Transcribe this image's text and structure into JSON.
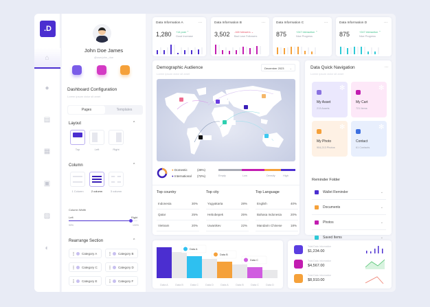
{
  "brand": {
    "logo": ".D"
  },
  "rail": {
    "items": [
      "home-icon",
      "add-circle-icon",
      "card-icon",
      "grid-icon",
      "inbox-icon",
      "contact-icon",
      "theme-icon"
    ]
  },
  "profile": {
    "name": "John Doe James",
    "handle": "@userjohn_doe"
  },
  "config": {
    "title": "Dashboard Configuration",
    "subtitle": "Lorem ipsum dolor sit amet",
    "tabs": [
      {
        "label": "Pages",
        "active": true
      },
      {
        "label": "Templates",
        "active": false
      }
    ],
    "layout": {
      "title": "Layout",
      "options": [
        "Top",
        "Left",
        "Right"
      ],
      "selected": "Top"
    },
    "column": {
      "title": "Column",
      "options": [
        "1 Column",
        "2 column",
        "3 column"
      ],
      "selected": "2 column"
    },
    "width": {
      "title": "Column Width",
      "left": "Left",
      "right": "Right",
      "min": "90%",
      "max": "100%",
      "value": 0.9
    },
    "rearrange": {
      "title": "Rearrange Section",
      "items": [
        "Category A",
        "Category B",
        "Category C",
        "Category D",
        "Category E",
        "Category F"
      ]
    }
  },
  "stats": [
    {
      "title": "Data Information A",
      "value": "1,280",
      "delta": "+14 post",
      "note": "Good Increase",
      "trend": "up",
      "color": "#4b2ed0",
      "bars": [
        6,
        6,
        14,
        2,
        6,
        6,
        7
      ]
    },
    {
      "title": "Data Information B",
      "value": "3,502",
      "delta": "-168 followers",
      "note": "Bad Lose Followers",
      "trend": "down",
      "color": "#c21cb0",
      "bars": [
        14,
        6,
        5,
        6,
        11,
        9,
        12
      ]
    },
    {
      "title": "Data Information C",
      "value": "875",
      "delta": "+247 interaction",
      "note": "Nice Progress",
      "trend": "up",
      "color": "#f5a13a",
      "bars": [
        10,
        9,
        11,
        11,
        5,
        4
      ]
    },
    {
      "title": "Data Information D",
      "value": "875",
      "delta": "+247 interaction",
      "note": "Nice Progress",
      "trend": "up",
      "color": "#2ec9d6",
      "bars": [
        11,
        9,
        11,
        11,
        4,
        4
      ]
    }
  ],
  "demographic": {
    "title": "Demographic Audience",
    "subtitle": "Lorem ipsum dolor sit amet",
    "period": "December 2023",
    "markers": [
      "North America",
      "Europe",
      "East Asia",
      "Russia",
      "Africa",
      "South America",
      "Australia"
    ],
    "legend": [
      {
        "label": "Domestic",
        "value": "(28%)",
        "color": "#f5a13a"
      },
      {
        "label": "International",
        "value": "(72%)",
        "color": "#3a1fb8"
      }
    ],
    "scale": [
      {
        "label": "Empty",
        "color": "#a9abb5"
      },
      {
        "label": "Low",
        "color": "#c21cb0"
      },
      {
        "label": "Density",
        "color": "#f5a13a"
      },
      {
        "label": "High",
        "color": "#4b2ed0"
      }
    ],
    "tables": [
      {
        "title": "Top country",
        "rows": [
          [
            "Indonesia",
            "30%"
          ],
          [
            "Qatar",
            "25%"
          ],
          [
            "Vietnam",
            "20%"
          ]
        ]
      },
      {
        "title": "Top city",
        "rows": [
          [
            "Yogyakarta",
            "28%"
          ],
          [
            "Hebobepek",
            "25%"
          ],
          [
            "Uwanikev",
            "22%"
          ]
        ]
      },
      {
        "title": "Top Language",
        "rows": [
          [
            "English",
            "40%"
          ],
          [
            "Bahasa Indonesia",
            "20%"
          ],
          [
            "Mandarin Chinese",
            "18%"
          ]
        ]
      }
    ]
  },
  "nav": {
    "title": "Data Quick Navigation",
    "subtitle": "Lorem ipsum dolor sit amet",
    "tiles": [
      {
        "label": "My Asset",
        "sub": "213 Assets",
        "bg": "#ebe8fd",
        "icon": "lock-icon",
        "color": "#8a72e0"
      },
      {
        "label": "My Cart",
        "sub": "721 Items",
        "bg": "#fde8f8",
        "icon": "cart-icon",
        "color": "#c21cb0"
      },
      {
        "label": "My Photo",
        "sub": "904,213 Photos",
        "bg": "#fef1e4",
        "icon": "photo-icon",
        "color": "#f5a13a"
      },
      {
        "label": "Contact",
        "sub": "61 Contacts",
        "bg": "#e8effd",
        "icon": "contact-icon",
        "color": "#3c6fe0"
      }
    ],
    "reminder_title": "Reminder Folder",
    "reminders": [
      {
        "label": "Wallet Reminder",
        "color": "#4b2ed0"
      },
      {
        "label": "Documents",
        "color": "#f5a13a"
      },
      {
        "label": "Photos",
        "color": "#c21cb0"
      },
      {
        "label": "Saved Items",
        "color": "#2ec9d6"
      }
    ]
  },
  "flow": {
    "categories": [
      "Data A",
      "Data B",
      "Data C",
      "Data D",
      "Data A",
      "Data B",
      "Data C",
      "Data D"
    ],
    "values": [
      45,
      38,
      32,
      28,
      24,
      20,
      16,
      12
    ],
    "callouts": [
      {
        "label": "Data A",
        "color": "#2ec0f0"
      },
      {
        "label": "Data B",
        "color": "#f5a13a"
      },
      {
        "label": "Data C",
        "color": "#d05ce0"
      }
    ]
  },
  "totals": [
    {
      "label": "Total Data Information",
      "value": "$1,234.00",
      "color": "#5a3de0"
    },
    {
      "label": "Total Data Information",
      "value": "$4,567.00",
      "color": "#c21cb0"
    },
    {
      "label": "Total Data Information",
      "value": "$8,910.00",
      "color": "#f5a13a"
    }
  ]
}
